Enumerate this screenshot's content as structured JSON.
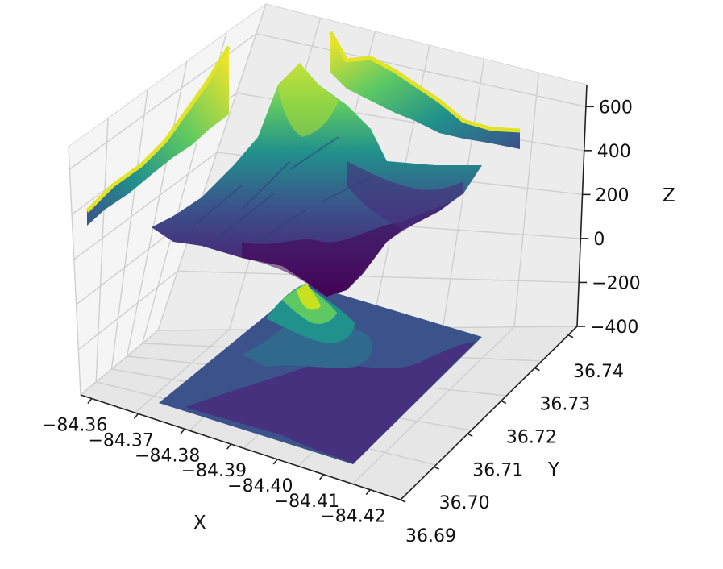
{
  "chart_data": {
    "type": "surface3d",
    "title": "",
    "xlabel": "X",
    "ylabel": "Y",
    "zlabel": "Z",
    "colormap": "viridis",
    "x_ticks": [
      "−84.36",
      "−84.37",
      "−84.38",
      "−84.39",
      "−84.40",
      "−84.41",
      "−84.42"
    ],
    "y_ticks": [
      "36.69",
      "36.70",
      "36.71",
      "36.72",
      "36.73",
      "36.74"
    ],
    "z_ticks": [
      "−400",
      "−200",
      "0",
      "200",
      "400",
      "600"
    ],
    "xlim": [
      -84.355,
      -84.42
    ],
    "ylim": [
      36.688,
      36.745
    ],
    "zlim": [
      -400,
      700
    ],
    "surface_z_range": [
      -20,
      700
    ],
    "projections": [
      "floor contour (z = -400)",
      "back wall contour (x)",
      "back wall contour (y)"
    ],
    "colors": {
      "low": "#440154",
      "mid": "#3b528b",
      "teal": "#21918c",
      "green": "#5ec962",
      "high": "#fde725",
      "pane": "#f2f2f2",
      "grid": "#c8c8c8"
    }
  }
}
